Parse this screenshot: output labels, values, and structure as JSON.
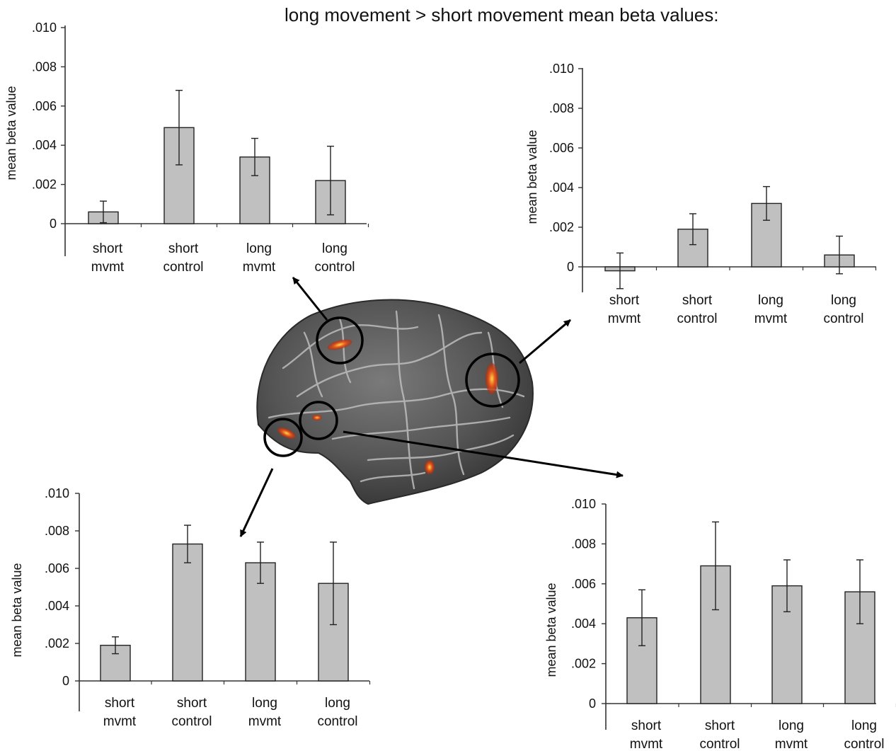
{
  "figure": {
    "title": "long movement > short movement mean beta values:",
    "highlight_color": "#e0531a",
    "bar_fill": "#c0c0c0"
  },
  "chart_data": [
    {
      "type": "bar",
      "panel": "top-left",
      "ylabel": "mean beta value",
      "ylim": [
        0,
        0.01
      ],
      "tick_labels": [
        "0",
        ".002",
        ".004",
        ".006",
        ".008",
        ".010"
      ],
      "categories": [
        [
          "short",
          "mvmt"
        ],
        [
          "short",
          "control"
        ],
        [
          "long",
          "mvmt"
        ],
        [
          "long",
          "control"
        ]
      ],
      "values": [
        0.0006,
        0.0049,
        0.0034,
        0.0022
      ],
      "errors": [
        0.00055,
        0.0019,
        0.00095,
        0.00175
      ]
    },
    {
      "type": "bar",
      "panel": "top-right",
      "ylabel": "mean beta value",
      "ylim": [
        0,
        0.01
      ],
      "tick_labels": [
        "0",
        ".002",
        ".004",
        ".006",
        ".008",
        ".010"
      ],
      "categories": [
        [
          "short",
          "mvmt"
        ],
        [
          "short",
          "control"
        ],
        [
          "long",
          "mvmt"
        ],
        [
          "long",
          "control"
        ]
      ],
      "values": [
        -0.0002,
        0.0019,
        0.0032,
        0.0006
      ],
      "errors": [
        0.0009,
        0.00078,
        0.00085,
        0.00095
      ]
    },
    {
      "type": "bar",
      "panel": "bottom-left",
      "ylabel": "mean beta value",
      "ylim": [
        0,
        0.01
      ],
      "tick_labels": [
        "0",
        ".002",
        ".004",
        ".006",
        ".008",
        ".010"
      ],
      "categories": [
        [
          "short",
          "mvmt"
        ],
        [
          "short",
          "control"
        ],
        [
          "long",
          "mvmt"
        ],
        [
          "long",
          "control"
        ]
      ],
      "values": [
        0.0019,
        0.0073,
        0.0063,
        0.0052
      ],
      "errors": [
        0.00045,
        0.001,
        0.0011,
        0.0022
      ]
    },
    {
      "type": "bar",
      "panel": "bottom-right",
      "ylabel": "mean beta value",
      "ylim": [
        0,
        0.01
      ],
      "tick_labels": [
        "0",
        ".002",
        ".004",
        ".006",
        ".008",
        ".010"
      ],
      "categories": [
        [
          "short",
          "mvmt"
        ],
        [
          "short",
          "control"
        ],
        [
          "long",
          "mvmt"
        ],
        [
          "long",
          "control"
        ]
      ],
      "values": [
        0.0043,
        0.0069,
        0.0059,
        0.0056
      ],
      "errors": [
        0.0014,
        0.0022,
        0.0013,
        0.0016
      ]
    }
  ]
}
